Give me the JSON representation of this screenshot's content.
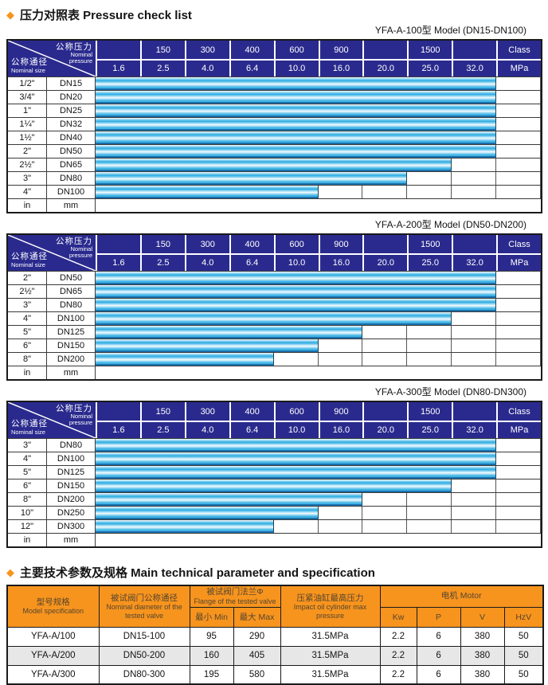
{
  "titles": {
    "pressure": "压力对照表 Pressure check list",
    "spec": "主要技术参数及规格 Main technical parameter and specification"
  },
  "colors": {
    "navy": "#2a2a8e",
    "orange": "#f7941e",
    "bar_cyan": "#29abe2"
  },
  "pressure_header": {
    "diag_pressure_zh": "公称压力",
    "diag_pressure_en": "Nominal pressure",
    "diag_size_zh": "公称通径",
    "diag_size_en": "Nominal size",
    "class_row": [
      "",
      "150",
      "300",
      "400",
      "600",
      "900",
      "",
      "1500",
      "",
      "Class"
    ],
    "mpa_row": [
      "1.6",
      "2.5",
      "4.0",
      "6.4",
      "10.0",
      "16.0",
      "20.0",
      "25.0",
      "32.0",
      "MPa"
    ]
  },
  "pressure_tables": [
    {
      "model_label": "YFA-A-100型  Model (DN15-DN100)",
      "rows": [
        {
          "inch": "1/2\"",
          "dn": "DN15",
          "bar_cols": 9,
          "max_mpa": "32.0"
        },
        {
          "inch": "3/4\"",
          "dn": "DN20",
          "bar_cols": 9,
          "max_mpa": "32.0"
        },
        {
          "inch": "1\"",
          "dn": "DN25",
          "bar_cols": 9,
          "max_mpa": "32.0"
        },
        {
          "inch": "1¼\"",
          "dn": "DN32",
          "bar_cols": 9,
          "max_mpa": "32.0"
        },
        {
          "inch": "1½\"",
          "dn": "DN40",
          "bar_cols": 9,
          "max_mpa": "32.0"
        },
        {
          "inch": "2\"",
          "dn": "DN50",
          "bar_cols": 9,
          "max_mpa": "32.0"
        },
        {
          "inch": "2½\"",
          "dn": "DN65",
          "bar_cols": 8,
          "max_mpa": "25.0"
        },
        {
          "inch": "3\"",
          "dn": "DN80",
          "bar_cols": 7,
          "max_mpa": "20.0"
        },
        {
          "inch": "4\"",
          "dn": "DN100",
          "bar_cols": 5,
          "max_mpa": "10.0"
        },
        {
          "inch": "in",
          "dn": "mm",
          "bar_cols": 0,
          "max_mpa": ""
        }
      ]
    },
    {
      "model_label": "YFA-A-200型  Model (DN50-DN200)",
      "rows": [
        {
          "inch": "2\"",
          "dn": "DN50",
          "bar_cols": 9,
          "max_mpa": "32.0"
        },
        {
          "inch": "2½\"",
          "dn": "DN65",
          "bar_cols": 9,
          "max_mpa": "32.0"
        },
        {
          "inch": "3\"",
          "dn": "DN80",
          "bar_cols": 9,
          "max_mpa": "32.0"
        },
        {
          "inch": "4\"",
          "dn": "DN100",
          "bar_cols": 8,
          "max_mpa": "25.0"
        },
        {
          "inch": "5\"",
          "dn": "DN125",
          "bar_cols": 6,
          "max_mpa": "16.0"
        },
        {
          "inch": "6\"",
          "dn": "DN150",
          "bar_cols": 5,
          "max_mpa": "10.0"
        },
        {
          "inch": "8\"",
          "dn": "DN200",
          "bar_cols": 4,
          "max_mpa": "6.4"
        },
        {
          "inch": "in",
          "dn": "mm",
          "bar_cols": 0,
          "max_mpa": ""
        }
      ]
    },
    {
      "model_label": "YFA-A-300型  Model (DN80-DN300)",
      "rows": [
        {
          "inch": "3\"",
          "dn": "DN80",
          "bar_cols": 9,
          "max_mpa": "32.0"
        },
        {
          "inch": "4\"",
          "dn": "DN100",
          "bar_cols": 9,
          "max_mpa": "32.0"
        },
        {
          "inch": "5\"",
          "dn": "DN125",
          "bar_cols": 9,
          "max_mpa": "32.0"
        },
        {
          "inch": "6\"",
          "dn": "DN150",
          "bar_cols": 8,
          "max_mpa": "25.0"
        },
        {
          "inch": "8\"",
          "dn": "DN200",
          "bar_cols": 6,
          "max_mpa": "16.0"
        },
        {
          "inch": "10\"",
          "dn": "DN250",
          "bar_cols": 5,
          "max_mpa": "10.0"
        },
        {
          "inch": "12\"",
          "dn": "DN300",
          "bar_cols": 4,
          "max_mpa": "6.4"
        },
        {
          "inch": "in",
          "dn": "mm",
          "bar_cols": 0,
          "max_mpa": ""
        }
      ]
    }
  ],
  "spec_table": {
    "headers": {
      "model_zh": "型号规格",
      "model_en": "Model specification",
      "diameter_zh": "被试阀门公称通径",
      "diameter_en": "Nominal diameter of the tested valve",
      "flange_zh": "被试阀门法兰Φ",
      "flange_en": "Flange of the tested valve",
      "min": "最小 Min",
      "max": "最大 Max",
      "pressure_zh": "压紧油缸最高压力",
      "pressure_en": "Impact oil cylinder max pressure",
      "motor": "电机  Motor",
      "motor_cols": [
        "Kw",
        "P",
        "V",
        "HzV"
      ]
    },
    "rows": [
      [
        "YFA-A/100",
        "DN15-100",
        "95",
        "290",
        "31.5MPa",
        "2.2",
        "6",
        "380",
        "50"
      ],
      [
        "YFA-A/200",
        "DN50-200",
        "160",
        "405",
        "31.5MPa",
        "2.2",
        "6",
        "380",
        "50"
      ],
      [
        "YFA-A/300",
        "DN80-300",
        "195",
        "580",
        "31.5MPa",
        "2.2",
        "6",
        "380",
        "50"
      ]
    ]
  }
}
